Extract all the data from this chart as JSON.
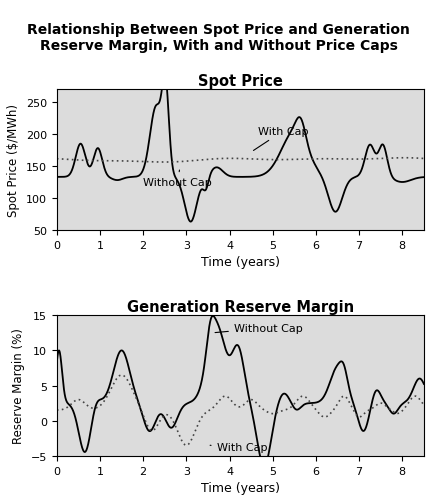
{
  "title": "Relationship Between Spot Price and Generation\nReserve Margin, With and Without Price Caps",
  "title_fontsize": 10.5,
  "subplot1_title": "Spot Price",
  "subplot2_title": "Generation Reserve Margin",
  "xlabel": "Time (years)",
  "ylabel1": "Spot Price ($/MWh)",
  "ylabel2": "Reserve Margin (%)",
  "xlim": [
    0,
    8.5
  ],
  "ylim1": [
    50,
    270
  ],
  "ylim2": [
    -5,
    15
  ],
  "yticks1": [
    50,
    100,
    150,
    200,
    250
  ],
  "yticks2": [
    -5,
    0,
    5,
    10,
    15
  ],
  "xticks": [
    0,
    1,
    2,
    3,
    4,
    5,
    6,
    7,
    8
  ],
  "bg_color": "#dcdcdc",
  "line_color": "#000000",
  "dashed_color": "#444444"
}
